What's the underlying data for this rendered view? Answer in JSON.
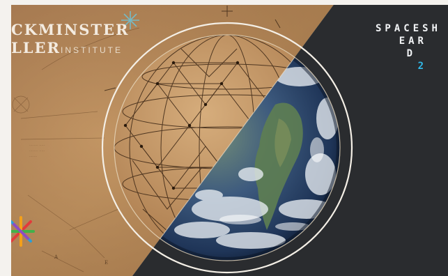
{
  "brand": {
    "line1": "CKMINSTER",
    "line2_bold": "LLER",
    "line2_light": "INSTITUTE"
  },
  "title": {
    "line1": "SPACESH",
    "line2": "EAR",
    "line3": "D",
    "line4": "2"
  },
  "colors": {
    "paper": "#b88a5a",
    "dark_panel": "#2e3133",
    "title_text": "#f1f3f5",
    "title_accent": "#30b8e8",
    "ocean": "#2d4d7a"
  },
  "icons": [
    "starburst-icon",
    "color-star-logo-icon",
    "globe-image",
    "geodesic-sphere-drawing"
  ]
}
